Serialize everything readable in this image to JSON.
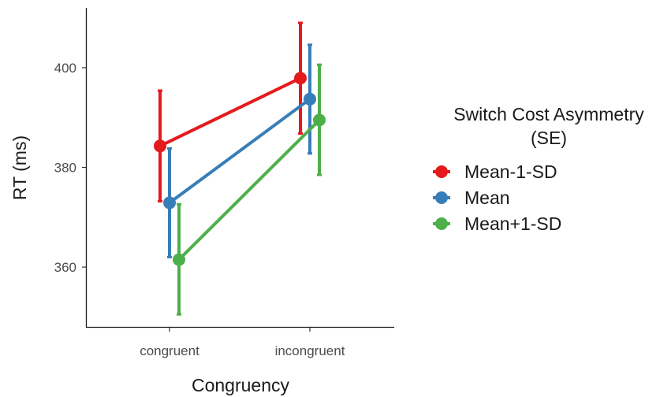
{
  "chart_data": {
    "type": "line",
    "xlabel": "Congruency",
    "ylabel": "RT (ms)",
    "categories": [
      "congruent",
      "incongruent"
    ],
    "ylim": [
      348,
      412
    ],
    "yticks": [
      360,
      380,
      400
    ],
    "grid": false,
    "error_bars": true,
    "legend": {
      "title_line1": "Switch Cost Asymmetry",
      "title_line2": "(SE)",
      "placement": "right"
    },
    "series": [
      {
        "name": "Mean-1-SD",
        "color": "#e41a1c",
        "values": [
          384.3,
          397.9
        ],
        "lower": [
          373.2,
          386.8
        ],
        "upper": [
          395.4,
          409.0
        ]
      },
      {
        "name": "Mean",
        "color": "#377eb8",
        "values": [
          372.9,
          393.7
        ],
        "lower": [
          362.0,
          382.8
        ],
        "upper": [
          383.8,
          404.6
        ]
      },
      {
        "name": "Mean+1-SD",
        "color": "#4daf4a",
        "values": [
          361.5,
          389.5
        ],
        "lower": [
          350.5,
          378.5
        ],
        "upper": [
          372.6,
          400.6
        ]
      }
    ]
  }
}
